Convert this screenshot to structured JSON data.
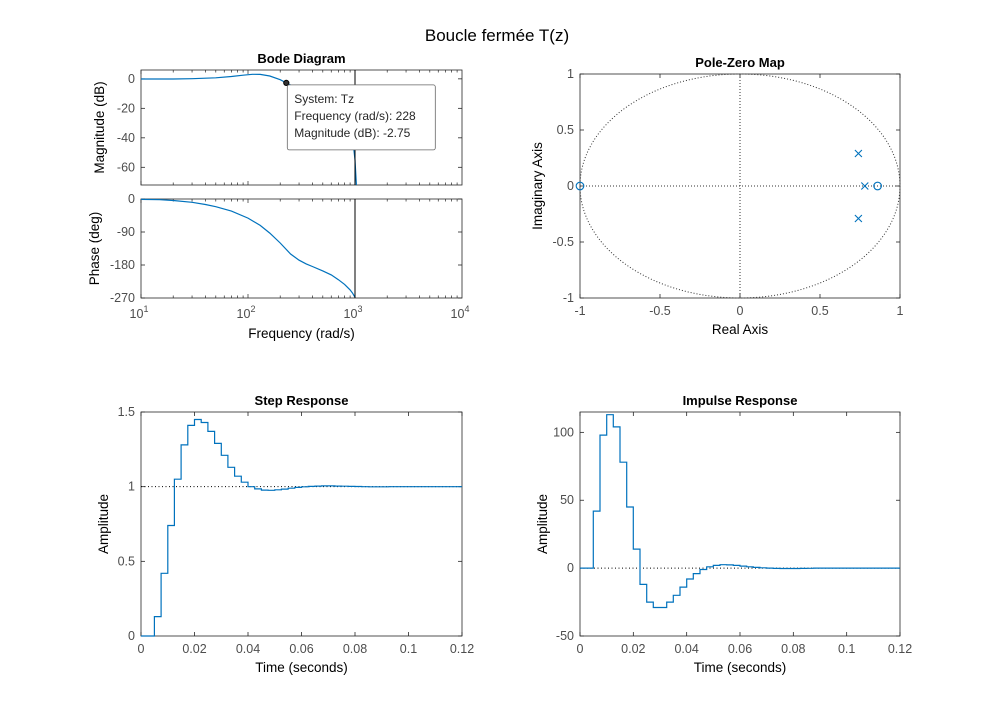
{
  "figure": {
    "title": "Boucle fermée T(z)",
    "colors": {
      "series": "#0072BD",
      "axes": "#262626",
      "tick_text": "#4d4d4d",
      "ref_line": "#000000"
    }
  },
  "chart_data": [
    {
      "type": "line",
      "title": "Bode Diagram",
      "subplot": "magnitude",
      "ylabel": "Magnitude (dB)",
      "xscale": "log",
      "xlim": [
        10,
        10000
      ],
      "ylim": [
        -72,
        6
      ],
      "yticks": [
        0,
        -20,
        -40,
        -60
      ],
      "grid": false,
      "series": [
        {
          "x": [
            10,
            20,
            30,
            50,
            70,
            90,
            110,
            130,
            160,
            200,
            228,
            260,
            300,
            350,
            400,
            500,
            600,
            700,
            800,
            900,
            950,
            1000,
            1030
          ],
          "y": [
            -0.1,
            -0.1,
            0.1,
            0.7,
            1.6,
            2.5,
            3.1,
            3.0,
            1.9,
            -0.6,
            -2.75,
            -4.8,
            -7.0,
            -9.4,
            -11.3,
            -14.5,
            -17.5,
            -21.0,
            -26.0,
            -33.0,
            -40.0,
            -55.0,
            -72.0
          ]
        }
      ],
      "datatip": {
        "x": 228,
        "y": -2.75,
        "lines": [
          "System: Tz",
          "Frequency (rad/s): 228",
          "Magnitude (dB): -2.75"
        ]
      },
      "vline_x": 1000
    },
    {
      "type": "line",
      "subplot": "phase",
      "ylabel": "Phase (deg)",
      "xlabel": "Frequency  (rad/s)",
      "xscale": "log",
      "xlim": [
        10,
        10000
      ],
      "ylim": [
        -270,
        0
      ],
      "yticks": [
        0,
        -90,
        -180,
        -270
      ],
      "xtick_labels": [
        {
          "x": 10,
          "base": "10",
          "exp": "1"
        },
        {
          "x": 100,
          "base": "10",
          "exp": "2"
        },
        {
          "x": 1000,
          "base": "10",
          "exp": "3"
        },
        {
          "x": 10000,
          "base": "10",
          "exp": "4"
        }
      ],
      "grid": false,
      "series": [
        {
          "x": [
            10,
            15,
            20,
            30,
            40,
            50,
            70,
            100,
            130,
            160,
            200,
            250,
            300,
            350,
            400,
            500,
            600,
            700,
            800,
            900,
            950,
            1000
          ],
          "y": [
            -1,
            -2,
            -4,
            -9,
            -15,
            -21,
            -33,
            -52,
            -72,
            -93,
            -120,
            -150,
            -167,
            -177,
            -184,
            -196,
            -207,
            -220,
            -233,
            -248,
            -257,
            -268
          ]
        }
      ],
      "vline_x": 1000
    },
    {
      "type": "scatter",
      "title": "Pole-Zero Map",
      "xlabel": "Real Axis",
      "ylabel": "Imaginary Axis",
      "xlim": [
        -1,
        1
      ],
      "ylim": [
        -1,
        1
      ],
      "xticks": [
        -1,
        -0.5,
        0,
        0.5,
        1
      ],
      "yticks": [
        1,
        0.5,
        0,
        -0.5,
        -1
      ],
      "unit_circle": true,
      "poles": [
        [
          0.74,
          0.29
        ],
        [
          0.74,
          -0.29
        ],
        [
          0.78,
          0
        ]
      ],
      "zeros": [
        [
          -1,
          0
        ],
        [
          0.86,
          0
        ]
      ]
    },
    {
      "type": "line",
      "title": "Step Response",
      "xlabel": "Time (seconds)",
      "ylabel": "Amplitude",
      "xlim": [
        0,
        0.12
      ],
      "ylim": [
        0,
        1.5
      ],
      "xticks": [
        0,
        0.02,
        0.04,
        0.06,
        0.08,
        0.1,
        0.12
      ],
      "yticks": [
        0,
        0.5,
        1,
        1.5
      ],
      "reference": 1,
      "step_width": 0.0025,
      "series": [
        {
          "y": [
            0,
            0,
            0.13,
            0.42,
            0.74,
            1.05,
            1.28,
            1.41,
            1.45,
            1.43,
            1.37,
            1.29,
            1.21,
            1.13,
            1.07,
            1.03,
            1.0,
            0.985,
            0.977,
            0.976,
            0.979,
            0.984,
            0.99,
            0.995,
            0.999,
            1.002,
            1.004,
            1.005,
            1.005,
            1.004,
            1.003,
            1.002,
            1.001,
            1.0,
            0.999,
            0.999,
            0.999,
            1.0,
            1.0,
            1.0,
            1.0,
            1.0,
            1.0,
            1.0,
            1.0,
            1.0,
            1.0,
            1.0
          ]
        }
      ]
    },
    {
      "type": "line",
      "title": "Impulse Response",
      "xlabel": "Time (seconds)",
      "ylabel": "Amplitude",
      "xlim": [
        0,
        0.12
      ],
      "ylim": [
        -50,
        115
      ],
      "xticks": [
        0,
        0.02,
        0.04,
        0.06,
        0.08,
        0.1,
        0.12
      ],
      "yticks": [
        100,
        50,
        0,
        -50
      ],
      "reference": 0,
      "step_width": 0.0025,
      "series": [
        {
          "y": [
            0,
            0,
            42,
            98,
            113,
            104,
            78,
            45,
            14,
            -12,
            -25,
            -29,
            -29,
            -25,
            -20,
            -14,
            -8,
            -4,
            -1,
            1,
            2,
            2.5,
            2.4,
            2,
            1.5,
            1,
            0.5,
            0.2,
            0,
            -0.2,
            -0.3,
            -0.3,
            -0.3,
            -0.2,
            -0.1,
            0,
            0,
            0,
            0,
            0,
            0,
            0,
            0,
            0,
            0,
            0,
            0,
            0
          ]
        }
      ]
    }
  ]
}
